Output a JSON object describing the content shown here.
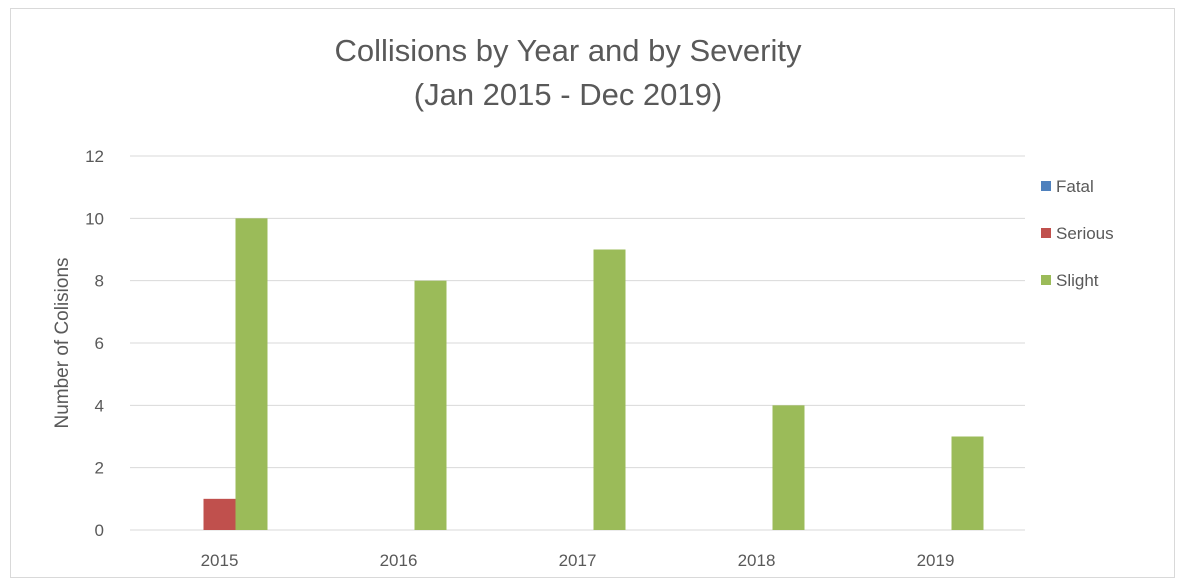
{
  "chart_data": {
    "type": "bar",
    "title": "Collisions by Year and by Severity",
    "subtitle": "(Jan 2015 - Dec 2019)",
    "xlabel": "",
    "ylabel": "Number of Colisions",
    "categories": [
      "2015",
      "2016",
      "2017",
      "2018",
      "2019"
    ],
    "series": [
      {
        "name": "Fatal",
        "color": "#4f81bd",
        "values": [
          0,
          0,
          0,
          0,
          0
        ]
      },
      {
        "name": "Serious",
        "color": "#c0504d",
        "values": [
          1,
          0,
          0,
          0,
          0
        ]
      },
      {
        "name": "Slight",
        "color": "#9bbb59",
        "values": [
          10,
          8,
          9,
          4,
          3
        ]
      }
    ],
    "ylim": [
      0,
      12
    ],
    "yticks": [
      "0",
      "2",
      "4",
      "6",
      "8",
      "10",
      "12"
    ],
    "grid": "horizontal",
    "legend_position": "right"
  }
}
